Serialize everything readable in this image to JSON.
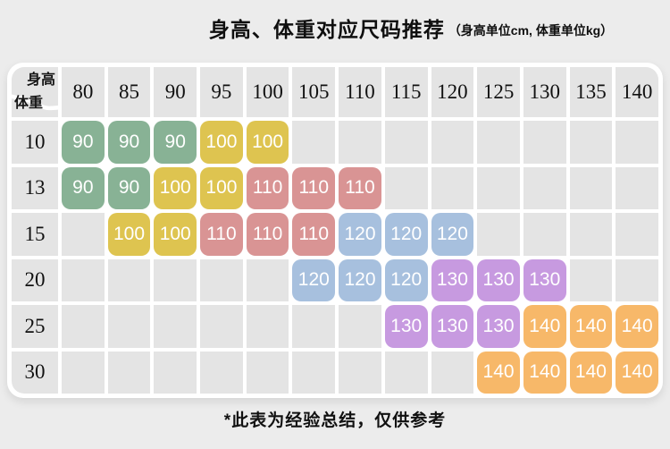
{
  "title": {
    "main": "身高、体重对应尺码推荐",
    "unit_note": "（身高单位cm, 体重单位kg）"
  },
  "corner": {
    "top": "身高",
    "bottom": "体重"
  },
  "footnote": "*此表为经验总结，仅供参考",
  "colors": {
    "page_bg": "#ececec",
    "panel_bg": "#ffffff",
    "empty_cell_bg": "#e4e4e4",
    "cell_text": "#ffffff",
    "header_text": "#111111"
  },
  "chart_data": {
    "type": "table",
    "title": "身高、体重对应尺码推荐",
    "unit_note": "身高单位cm, 体重单位kg",
    "col_axis_label": "身高",
    "row_axis_label": "体重",
    "height_columns_cm": [
      80,
      85,
      90,
      95,
      100,
      105,
      110,
      115,
      120,
      125,
      130,
      135,
      140
    ],
    "weight_rows_kg": [
      10,
      13,
      15,
      20,
      25,
      30
    ],
    "size_matrix": [
      [
        "90",
        "90",
        "90",
        "100",
        "100",
        "",
        "",
        "",
        "",
        "",
        "",
        "",
        ""
      ],
      [
        "90",
        "90",
        "100",
        "100",
        "110",
        "110",
        "110",
        "",
        "",
        "",
        "",
        "",
        ""
      ],
      [
        "",
        "100",
        "100",
        "110",
        "110",
        "110",
        "120",
        "120",
        "120",
        "",
        "",
        "",
        ""
      ],
      [
        "",
        "",
        "",
        "",
        "",
        "120",
        "120",
        "120",
        "130",
        "130",
        "130",
        "",
        ""
      ],
      [
        "",
        "",
        "",
        "",
        "",
        "",
        "",
        "130",
        "130",
        "130",
        "140",
        "140",
        "140"
      ],
      [
        "",
        "",
        "",
        "",
        "",
        "",
        "",
        "",
        "",
        "140",
        "140",
        "140",
        "140"
      ]
    ],
    "size_colors": {
      "90": "#88B295",
      "100": "#DEC450",
      "110": "#D99494",
      "120": "#A7C0DE",
      "130": "#C79AE0",
      "140": "#F7B869"
    },
    "footnote": "*此表为经验总结，仅供参考"
  }
}
